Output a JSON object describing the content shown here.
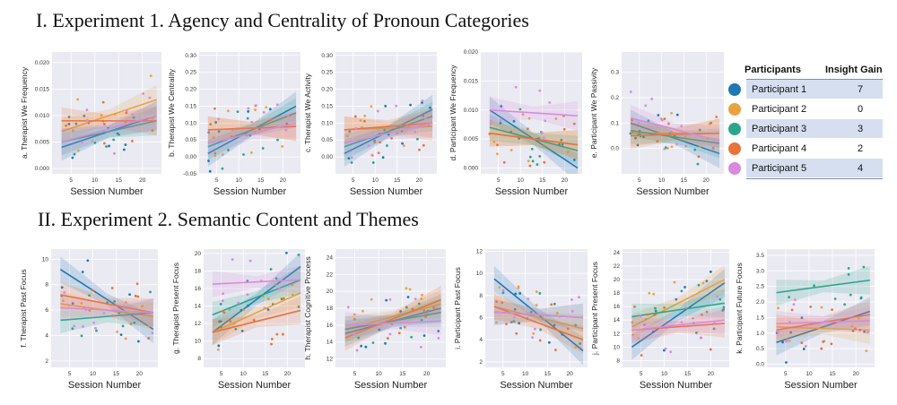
{
  "sections": {
    "s1": "I. Experiment 1. Agency and Centrality of Pronoun Categories",
    "s2": "II. Experiment 2. Semantic Content and Themes"
  },
  "legend": {
    "header_participants": "Participants",
    "header_gain": "Insight Gain",
    "rows": [
      {
        "name": "Participant 1",
        "gain": "7",
        "color": "#1f77b4"
      },
      {
        "name": "Participant 2",
        "gain": "0",
        "color": "#e8a33d"
      },
      {
        "name": "Participant 3",
        "gain": "3",
        "color": "#2ca58d"
      },
      {
        "name": "Participant 4",
        "gain": "2",
        "color": "#e8743b"
      },
      {
        "name": "Participant 5",
        "gain": "4",
        "color": "#d98ad9"
      }
    ]
  },
  "colors": {
    "plot_bg": "#eaeaf2",
    "grid": "#ffffff",
    "p1": "#1f77b4",
    "p2": "#e8a33d",
    "p3": "#2ca58d",
    "p4": "#e8743b",
    "p5": "#d98ad9"
  },
  "chart_data": [
    {
      "type": "scatter",
      "title": "",
      "xlabel": "Session Number",
      "ylabel": "a. Therapist We Frequency",
      "xlim": [
        1,
        24
      ],
      "xticks": [
        5,
        10,
        15,
        20
      ],
      "ylim": [
        -0.001,
        0.022
      ],
      "yticks": [
        0.0,
        0.005,
        0.01,
        0.015,
        0.02
      ],
      "ytick_labels": [
        "0.000",
        "0.005",
        "0.010",
        "0.015",
        "0.020"
      ],
      "series": [
        {
          "name": "Participant 1",
          "start": 0.004,
          "end": 0.01
        },
        {
          "name": "Participant 2",
          "start": 0.007,
          "end": 0.013
        },
        {
          "name": "Participant 3",
          "start": 0.005,
          "end": 0.009
        },
        {
          "name": "Participant 4",
          "start": 0.009,
          "end": 0.009
        },
        {
          "name": "Participant 5",
          "start": 0.005,
          "end": 0.01
        }
      ]
    },
    {
      "type": "scatter",
      "title": "",
      "xlabel": "Session Number",
      "ylabel": "b. Therapist We Centrality",
      "xlim": [
        1,
        24
      ],
      "xticks": [
        5,
        10,
        15,
        20
      ],
      "ylim": [
        -0.05,
        0.31
      ],
      "yticks": [
        -0.05,
        0.0,
        0.05,
        0.1,
        0.15,
        0.2,
        0.25,
        0.3
      ],
      "ytick_labels": [
        "-0.05",
        "0.00",
        "0.05",
        "0.10",
        "0.15",
        "0.20",
        "0.25",
        "0.30"
      ],
      "series": [
        {
          "name": "Participant 1",
          "start": 0.01,
          "end": 0.15
        },
        {
          "name": "Participant 2",
          "start": 0.08,
          "end": 0.09
        },
        {
          "name": "Participant 3",
          "start": 0.03,
          "end": 0.13
        },
        {
          "name": "Participant 4",
          "start": 0.08,
          "end": 0.09
        },
        {
          "name": "Participant 5",
          "start": 0.04,
          "end": 0.1
        }
      ]
    },
    {
      "type": "scatter",
      "title": "",
      "xlabel": "Session Number",
      "ylabel": "c. Therapist We Activity",
      "xlim": [
        1,
        24
      ],
      "xticks": [
        5,
        10,
        15,
        20
      ],
      "ylim": [
        -0.05,
        0.31
      ],
      "yticks": [
        0.0,
        0.05,
        0.1,
        0.15,
        0.2,
        0.25,
        0.3
      ],
      "ytick_labels": [
        "0.00",
        "0.05",
        "0.10",
        "0.15",
        "0.20",
        "0.25",
        "0.30"
      ],
      "series": [
        {
          "name": "Participant 1",
          "start": 0.01,
          "end": 0.14
        },
        {
          "name": "Participant 2",
          "start": 0.08,
          "end": 0.09
        },
        {
          "name": "Participant 3",
          "start": 0.03,
          "end": 0.12
        },
        {
          "name": "Participant 4",
          "start": 0.08,
          "end": 0.1
        },
        {
          "name": "Participant 5",
          "start": 0.04,
          "end": 0.1
        }
      ]
    },
    {
      "type": "scatter",
      "title": "",
      "xlabel": "Session Number",
      "ylabel": "d. Participant We Frequency",
      "xlim": [
        1,
        24
      ],
      "xticks": [
        5,
        10,
        15,
        20
      ],
      "ylim": [
        -0.001,
        0.02
      ],
      "yticks": [
        0.0,
        0.005,
        0.01,
        0.015,
        0.02
      ],
      "ytick_labels": [
        "0.000",
        "0.005",
        "0.010",
        "0.015",
        "0.020"
      ],
      "series": [
        {
          "name": "Participant 1",
          "start": 0.01,
          "end": 0.0
        },
        {
          "name": "Participant 2",
          "start": 0.006,
          "end": 0.004
        },
        {
          "name": "Participant 3",
          "start": 0.007,
          "end": 0.003
        },
        {
          "name": "Participant 4",
          "start": 0.006,
          "end": 0.004
        },
        {
          "name": "Participant 5",
          "start": 0.01,
          "end": 0.009
        }
      ]
    },
    {
      "type": "scatter",
      "title": "",
      "xlabel": "Session Number",
      "ylabel": "e. Participant We Passivity",
      "xlim": [
        1,
        24
      ],
      "xticks": [
        5,
        10,
        15,
        20
      ],
      "ylim": [
        -0.1,
        0.38
      ],
      "yticks": [
        0.0,
        0.1,
        0.2,
        0.3
      ],
      "ytick_labels": [
        "0.0",
        "0.1",
        "0.2",
        "0.3"
      ],
      "series": [
        {
          "name": "Participant 1",
          "start": 0.1,
          "end": -0.02
        },
        {
          "name": "Participant 2",
          "start": 0.06,
          "end": 0.06
        },
        {
          "name": "Participant 3",
          "start": 0.07,
          "end": 0.02
        },
        {
          "name": "Participant 4",
          "start": 0.05,
          "end": 0.06
        },
        {
          "name": "Participant 5",
          "start": 0.12,
          "end": 0.03
        }
      ]
    },
    {
      "type": "scatter",
      "title": "",
      "xlabel": "Session Number",
      "ylabel": "f. Therapist Past Focus",
      "xlim": [
        1,
        24
      ],
      "xticks": [
        5,
        10,
        15,
        20
      ],
      "ylim": [
        1.5,
        10.8
      ],
      "yticks": [
        2,
        4,
        6,
        8,
        10
      ],
      "ytick_labels": [
        "2",
        "4",
        "6",
        "8",
        "10"
      ],
      "series": [
        {
          "name": "Participant 1",
          "start": 9.2,
          "end": 4.5
        },
        {
          "name": "Participant 2",
          "start": 6.5,
          "end": 5.5
        },
        {
          "name": "Participant 3",
          "start": 5.2,
          "end": 5.8
        },
        {
          "name": "Participant 4",
          "start": 7.2,
          "end": 5.8
        },
        {
          "name": "Participant 5",
          "start": 6.2,
          "end": 5.8
        }
      ]
    },
    {
      "type": "scatter",
      "title": "",
      "xlabel": "Session Number",
      "ylabel": "g. Therapist Present Focus",
      "xlim": [
        1,
        24
      ],
      "xticks": [
        5,
        10,
        15,
        20
      ],
      "ylim": [
        7,
        20.5
      ],
      "yticks": [
        8,
        10,
        12,
        14,
        16,
        18,
        20
      ],
      "ytick_labels": [
        "8",
        "10",
        "12",
        "14",
        "16",
        "18",
        "20"
      ],
      "series": [
        {
          "name": "Participant 1",
          "start": 11.0,
          "end": 18.5
        },
        {
          "name": "Participant 2",
          "start": 11.0,
          "end": 15.5
        },
        {
          "name": "Participant 3",
          "start": 13.0,
          "end": 17.0
        },
        {
          "name": "Participant 4",
          "start": 11.0,
          "end": 13.5
        },
        {
          "name": "Participant 5",
          "start": 16.5,
          "end": 17.0
        }
      ]
    },
    {
      "type": "scatter",
      "title": "",
      "xlabel": "Session Number",
      "ylabel": "h. Therapist Cognitive Process",
      "xlim": [
        1,
        24
      ],
      "xticks": [
        5,
        10,
        15,
        20
      ],
      "ylim": [
        11,
        25
      ],
      "yticks": [
        12,
        14,
        16,
        18,
        20,
        22,
        24
      ],
      "ytick_labels": [
        "12",
        "14",
        "16",
        "18",
        "20",
        "22",
        "24"
      ],
      "series": [
        {
          "name": "Participant 1",
          "start": 15.0,
          "end": 18.0
        },
        {
          "name": "Participant 2",
          "start": 15.5,
          "end": 18.5
        },
        {
          "name": "Participant 3",
          "start": 15.5,
          "end": 17.5
        },
        {
          "name": "Participant 4",
          "start": 14.5,
          "end": 19.0
        },
        {
          "name": "Participant 5",
          "start": 16.0,
          "end": 16.5
        }
      ]
    },
    {
      "type": "scatter",
      "title": "",
      "xlabel": "Session Number",
      "ylabel": "i. Participant  Past Focus",
      "xlim": [
        1,
        24
      ],
      "xticks": [
        5,
        10,
        15,
        20
      ],
      "ylim": [
        1.5,
        12.2
      ],
      "yticks": [
        2,
        4,
        6,
        8,
        10,
        12
      ],
      "ytick_labels": [
        "2",
        "4",
        "6",
        "8",
        "10",
        "12"
      ],
      "series": [
        {
          "name": "Participant 1",
          "start": 9.5,
          "end": 3.0
        },
        {
          "name": "Participant 2",
          "start": 7.0,
          "end": 5.0
        },
        {
          "name": "Participant 3",
          "start": 6.5,
          "end": 6.0
        },
        {
          "name": "Participant 4",
          "start": 7.0,
          "end": 4.0
        },
        {
          "name": "Participant 5",
          "start": 6.5,
          "end": 6.0
        }
      ]
    },
    {
      "type": "scatter",
      "title": "",
      "xlabel": "Session Number",
      "ylabel": "j. Participant Present Focus",
      "xlim": [
        1,
        24
      ],
      "xticks": [
        5,
        10,
        15,
        20
      ],
      "ylim": [
        7,
        24.5
      ],
      "yticks": [
        8,
        10,
        12,
        14,
        16,
        18,
        20,
        22,
        24
      ],
      "ytick_labels": [
        "8",
        "10",
        "12",
        "14",
        "16",
        "18",
        "20",
        "22",
        "24"
      ],
      "series": [
        {
          "name": "Participant 1",
          "start": 10.0,
          "end": 19.5
        },
        {
          "name": "Participant 2",
          "start": 13.0,
          "end": 20.0
        },
        {
          "name": "Participant 3",
          "start": 14.5,
          "end": 16.5
        },
        {
          "name": "Participant 4",
          "start": 12.5,
          "end": 13.5
        },
        {
          "name": "Participant 5",
          "start": 12.5,
          "end": 14.0
        }
      ]
    },
    {
      "type": "scatter",
      "title": "",
      "xlabel": "Session Number",
      "ylabel": "k. Participant  Future Focus",
      "xlim": [
        1,
        24
      ],
      "xticks": [
        5,
        10,
        15,
        20
      ],
      "ylim": [
        -0.1,
        3.7
      ],
      "yticks": [
        0.0,
        0.5,
        1.0,
        1.5,
        2.0,
        2.5,
        3.0,
        3.5
      ],
      "ytick_labels": [
        "0.0",
        "0.5",
        "1.0",
        "1.5",
        "2.0",
        "2.5",
        "3.0",
        "3.5"
      ],
      "series": [
        {
          "name": "Participant 1",
          "start": 0.7,
          "end": 1.7
        },
        {
          "name": "Participant 2",
          "start": 1.2,
          "end": 1.1
        },
        {
          "name": "Participant 3",
          "start": 2.3,
          "end": 2.7
        },
        {
          "name": "Participant 4",
          "start": 1.1,
          "end": 1.6
        },
        {
          "name": "Participant 5",
          "start": 1.3,
          "end": 1.4
        }
      ]
    }
  ]
}
